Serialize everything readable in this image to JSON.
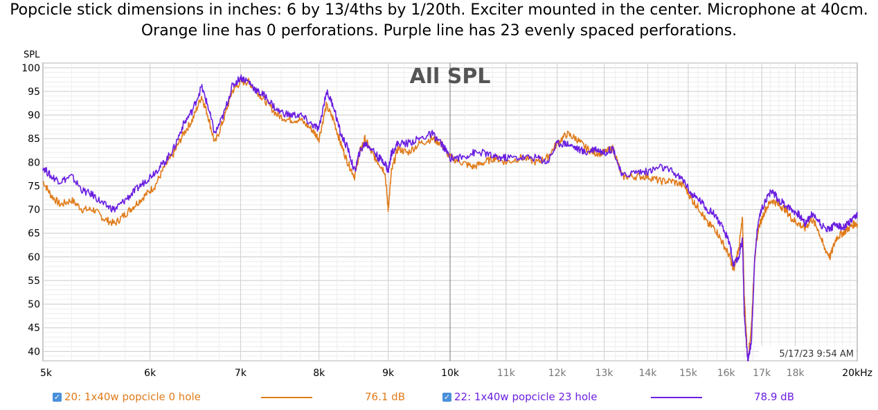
{
  "title": "Popcicle stick dimensions in inches: 6 by 13/4ths by 1/20th. Exciter mounted in the center. Microphone at 40cm. Orange line has 0 perforations. Purple line has 23 evenly spaced perforations.",
  "timestamp": "5/17/23 9:54 AM",
  "legend": [
    {
      "check": "✓",
      "label": "20: 1x40w popcicle 0 hole",
      "value": "76.1 dB",
      "color": "#e07b1a"
    },
    {
      "check": "✓",
      "label": "22: 1x40w popcicle 23 hole",
      "value": "78.9 dB",
      "color": "#6a1ee0"
    }
  ],
  "chart_data": {
    "type": "line",
    "title": "All SPL",
    "ylabel": "SPL",
    "xscale": "log",
    "xlim": [
      5000,
      20000
    ],
    "ylim": [
      38,
      101
    ],
    "y_ticks": [
      40,
      45,
      50,
      55,
      60,
      65,
      70,
      75,
      80,
      85,
      90,
      95,
      100
    ],
    "x_ticks": [
      {
        "v": 5000,
        "label": "5k"
      },
      {
        "v": 6000,
        "label": "6k"
      },
      {
        "v": 7000,
        "label": "7k"
      },
      {
        "v": 8000,
        "label": "8k"
      },
      {
        "v": 9000,
        "label": "9k"
      },
      {
        "v": 10000,
        "label": "10k"
      },
      {
        "v": 11000,
        "label": "11k"
      },
      {
        "v": 12000,
        "label": "12k"
      },
      {
        "v": 13000,
        "label": "13k"
      },
      {
        "v": 14000,
        "label": "14k"
      },
      {
        "v": 15000,
        "label": "15k"
      },
      {
        "v": 16000,
        "label": "16k"
      },
      {
        "v": 17000,
        "label": "17k"
      },
      {
        "v": 18000,
        "label": "18k"
      },
      {
        "v": 20000,
        "label": "20kHz"
      }
    ],
    "grid": true,
    "series": [
      {
        "name": "20: 1x40w popcicle 0 hole",
        "color": "#e07b1a",
        "x": [
          5000,
          5070,
          5150,
          5250,
          5350,
          5450,
          5550,
          5650,
          5750,
          5850,
          5950,
          6050,
          6150,
          6250,
          6350,
          6450,
          6550,
          6620,
          6700,
          6800,
          6900,
          7000,
          7100,
          7200,
          7300,
          7450,
          7600,
          7750,
          7900,
          8000,
          8100,
          8200,
          8300,
          8400,
          8500,
          8570,
          8650,
          8750,
          8850,
          8950,
          9000,
          9050,
          9150,
          9300,
          9500,
          9700,
          9850,
          10000,
          10200,
          10400,
          10600,
          10800,
          11000,
          11300,
          11600,
          11800,
          12000,
          12200,
          12400,
          12600,
          12800,
          13000,
          13200,
          13400,
          13700,
          14000,
          14300,
          14600,
          14900,
          15100,
          15300,
          15500,
          15700,
          15900,
          16100,
          16200,
          16350,
          16450,
          16500,
          16600,
          16700,
          16800,
          16900,
          17100,
          17300,
          17500,
          17700,
          17900,
          18100,
          18300,
          18500,
          18700,
          18900,
          19100,
          19300,
          19500,
          19700,
          19900,
          20000
        ],
        "y": [
          76,
          73,
          71,
          72,
          70,
          70,
          68,
          67,
          69,
          71,
          73,
          75,
          79,
          82,
          86,
          89,
          94,
          90,
          84,
          89,
          95,
          97,
          97,
          95,
          93,
          90,
          89,
          89,
          87,
          85,
          92,
          89,
          84,
          80,
          77,
          82,
          85,
          82,
          80,
          78,
          70,
          78,
          83,
          82,
          84,
          85,
          84,
          81,
          80,
          79,
          80,
          81,
          80,
          81,
          80,
          81,
          84,
          86,
          85,
          83,
          82,
          82,
          83,
          77,
          77,
          77,
          76,
          76,
          75,
          72,
          70,
          67,
          66,
          63,
          60,
          57,
          62,
          68,
          52,
          38,
          45,
          60,
          66,
          70,
          72,
          71,
          70,
          68,
          67,
          66,
          68,
          66,
          62,
          60,
          64,
          65,
          66,
          67,
          67
        ]
      },
      {
        "name": "22: 1x40w popcicle 23 hole",
        "color": "#6a1ee0",
        "x": [
          5000,
          5070,
          5150,
          5250,
          5350,
          5450,
          5550,
          5650,
          5750,
          5850,
          5950,
          6050,
          6150,
          6250,
          6350,
          6450,
          6550,
          6620,
          6700,
          6800,
          6900,
          7000,
          7100,
          7200,
          7300,
          7450,
          7600,
          7750,
          7900,
          8000,
          8100,
          8200,
          8300,
          8400,
          8500,
          8570,
          8650,
          8750,
          8850,
          8950,
          9000,
          9050,
          9150,
          9300,
          9500,
          9700,
          9850,
          10000,
          10200,
          10400,
          10600,
          10800,
          11000,
          11300,
          11600,
          11800,
          12000,
          12200,
          12400,
          12600,
          12800,
          13000,
          13200,
          13400,
          13700,
          14000,
          14300,
          14600,
          14900,
          15100,
          15300,
          15500,
          15700,
          15900,
          16100,
          16200,
          16350,
          16450,
          16500,
          16600,
          16700,
          16800,
          16900,
          17100,
          17300,
          17500,
          17700,
          17900,
          18100,
          18300,
          18500,
          18700,
          18900,
          19100,
          19300,
          19500,
          19700,
          19900,
          20000
        ],
        "y": [
          79,
          77,
          76,
          77,
          74,
          73,
          71,
          70,
          72,
          74,
          76,
          78,
          80,
          83,
          88,
          91,
          96,
          92,
          86,
          90,
          96,
          98,
          97,
          95,
          94,
          91,
          90,
          90,
          88,
          87,
          95,
          92,
          86,
          83,
          78,
          82,
          84,
          83,
          81,
          80,
          78,
          82,
          84,
          84,
          85,
          86,
          84,
          81,
          81,
          82,
          82,
          81,
          81,
          81,
          81,
          80,
          84,
          84,
          83,
          82,
          83,
          82,
          83,
          77,
          78,
          78,
          79,
          78,
          76,
          73,
          72,
          70,
          69,
          66,
          63,
          58,
          60,
          64,
          48,
          38,
          42,
          60,
          68,
          72,
          74,
          72,
          71,
          70,
          69,
          67,
          69,
          68,
          66,
          66,
          67,
          66,
          67,
          68,
          69
        ]
      }
    ]
  }
}
